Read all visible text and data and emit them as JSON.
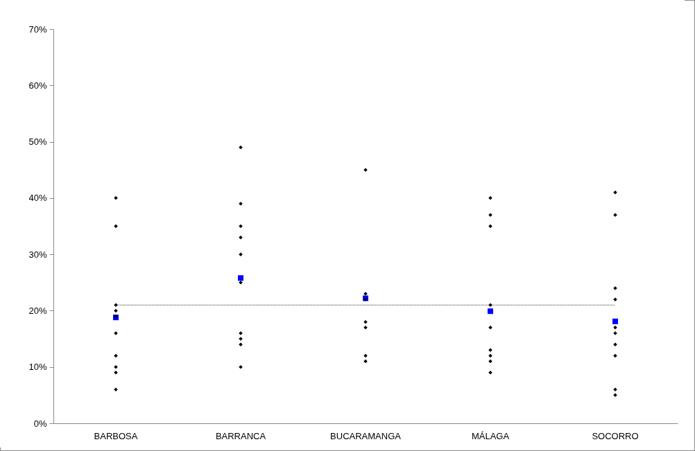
{
  "chart_data": {
    "type": "scatter",
    "categories": [
      "BARBOSA",
      "BARRANCA",
      "BUCARAMANGA",
      "MÁLAGA",
      "SOCORRO"
    ],
    "ylim": [
      0,
      70
    ],
    "yticks": [
      {
        "value": 0,
        "label": "0%"
      },
      {
        "value": 10,
        "label": "10%"
      },
      {
        "value": 20,
        "label": "20%"
      },
      {
        "value": 30,
        "label": "30%"
      },
      {
        "value": 40,
        "label": "40%"
      },
      {
        "value": 50,
        "label": "50%"
      },
      {
        "value": 60,
        "label": "60%"
      },
      {
        "value": 70,
        "label": "70%"
      }
    ],
    "grid": false,
    "legend": false,
    "marker": "diamond",
    "series": [
      {
        "color": "#000000",
        "x": [
          "BARBOSA",
          "BARBOSA",
          "BARBOSA",
          "BARBOSA",
          "BARBOSA",
          "BARBOSA",
          "BARBOSA",
          "BARBOSA",
          "BARBOSA",
          "BARBOSA",
          "BARRANCA",
          "BARRANCA",
          "BARRANCA",
          "BARRANCA",
          "BARRANCA",
          "BARRANCA",
          "BARRANCA",
          "BARRANCA",
          "BARRANCA",
          "BARRANCA",
          "BUCARAMANGA",
          "BUCARAMANGA",
          "BUCARAMANGA",
          "BUCARAMANGA",
          "BUCARAMANGA",
          "BUCARAMANGA",
          "BUCARAMANGA",
          "MÁLAGA",
          "MÁLAGA",
          "MÁLAGA",
          "MÁLAGA",
          "MÁLAGA",
          "MÁLAGA",
          "MÁLAGA",
          "MÁLAGA",
          "MÁLAGA",
          "SOCORRO",
          "SOCORRO",
          "SOCORRO",
          "SOCORRO",
          "SOCORRO",
          "SOCORRO",
          "SOCORRO",
          "SOCORRO",
          "SOCORRO",
          "SOCORRO"
        ],
        "values": [
          40,
          35,
          21,
          20,
          19,
          16,
          12,
          10,
          9,
          6,
          49,
          39,
          35,
          33,
          30,
          25,
          16,
          15,
          14,
          10,
          45,
          23,
          22,
          18,
          17,
          12,
          11,
          40,
          37,
          35,
          21,
          17,
          13,
          12,
          11,
          9,
          41,
          37,
          24,
          22,
          17,
          16,
          14,
          12,
          6,
          5
        ]
      },
      {
        "color": "#0000ff",
        "marker": "square",
        "x": [
          "BARBOSA",
          "BARRANCA",
          "BUCARAMANGA",
          "MÁLAGA",
          "SOCORRO"
        ],
        "values": [
          18.8,
          25.8,
          22.2,
          19.9,
          18.1
        ]
      }
    ],
    "ref_lines": [
      {
        "axis": "y",
        "value": 21,
        "color": "#000000",
        "line_style": "dotted"
      }
    ]
  }
}
